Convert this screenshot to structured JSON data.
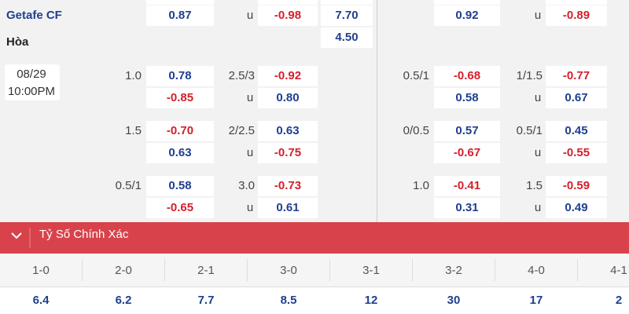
{
  "teams": [
    {
      "name": "Getafe CF",
      "full": [
        "0.87",
        "u",
        "-0.98",
        "7.70"
      ],
      "half": [
        "0.92",
        "u",
        "-0.89"
      ]
    },
    {
      "name": "Hòa",
      "full": [
        "4.50"
      ]
    }
  ],
  "match": {
    "date": "08/29",
    "time": "10:00PM"
  },
  "lines": [
    {
      "full": [
        "1.0",
        "0.78",
        "2.5/3",
        "-0.92",
        "-0.85",
        "u",
        "0.80"
      ],
      "half": [
        "0.5/1",
        "-0.68",
        "1/1.5",
        "-0.77",
        "0.58",
        "u",
        "0.67"
      ]
    },
    {
      "full": [
        "1.5",
        "-0.70",
        "2/2.5",
        "0.63",
        "0.63",
        "u",
        "-0.75"
      ],
      "half": [
        "0/0.5",
        "0.57",
        "0.5/1",
        "0.45",
        "-0.67",
        "u",
        "-0.55"
      ]
    },
    {
      "full": [
        "0.5/1",
        "0.58",
        "3.0",
        "-0.73",
        "-0.65",
        "u",
        "0.61"
      ],
      "half": [
        "1.0",
        "-0.41",
        "1.5",
        "-0.59",
        "0.31",
        "u",
        "0.49"
      ]
    }
  ],
  "section": {
    "title": "Tỷ Số Chính Xác"
  },
  "scores": [
    {
      "score": "1-0",
      "odds": "6.4"
    },
    {
      "score": "2-0",
      "odds": "6.2"
    },
    {
      "score": "2-1",
      "odds": "7.7"
    },
    {
      "score": "3-0",
      "odds": "8.5"
    },
    {
      "score": "3-1",
      "odds": "12"
    },
    {
      "score": "3-2",
      "odds": "30"
    },
    {
      "score": "4-0",
      "odds": "17"
    },
    {
      "score": "4-1",
      "odds": "2"
    }
  ]
}
